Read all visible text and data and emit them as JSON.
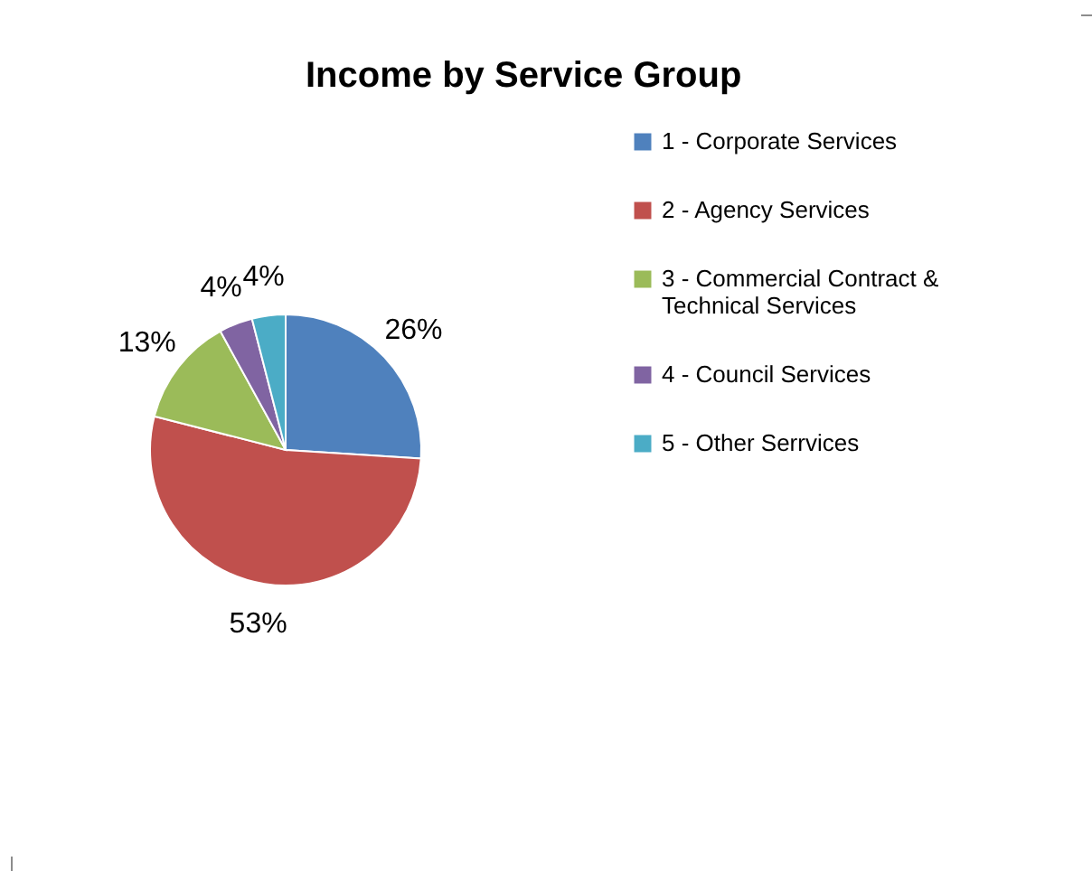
{
  "chart_data": {
    "type": "pie",
    "title": "Income by Service Group",
    "categories": [
      "1 - Corporate Services",
      "2 - Agency Services",
      "3 - Commercial Contract & Technical Services",
      "4 - Council Services",
      "5 - Other Serrvices"
    ],
    "values": [
      26,
      53,
      13,
      4,
      4
    ],
    "colors": [
      "#4f81bd",
      "#c0504d",
      "#9bbb59",
      "#8064a2",
      "#4bacc6"
    ],
    "value_labels": [
      "26%",
      "53%",
      "13%",
      "4%",
      "4%"
    ],
    "legend": "right"
  }
}
